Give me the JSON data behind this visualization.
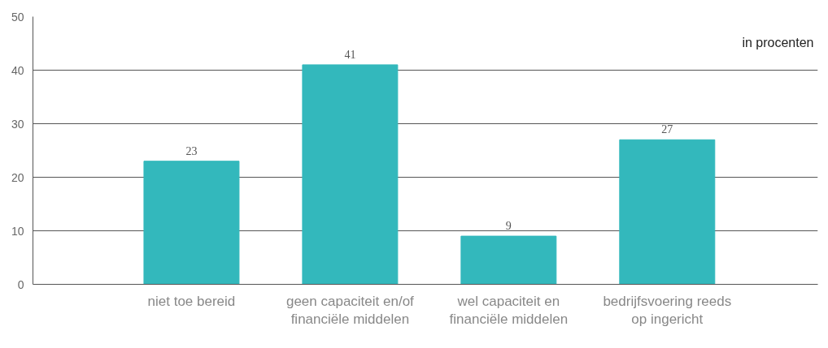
{
  "chart_data": {
    "type": "bar",
    "categories": [
      "niet toe bereid",
      "geen capaciteit en/of\nfinanciële middelen",
      "wel capaciteit en\nfinanciële middelen",
      "bedrijfsvoering reeds\nop ingericht"
    ],
    "values": [
      23,
      41,
      9,
      27
    ],
    "color": "#33b8bc",
    "ylim": [
      0,
      50
    ],
    "yticks": [
      0,
      10,
      20,
      30,
      40,
      50
    ],
    "grid": "y",
    "data_labels": true,
    "annotations": [
      "in procenten"
    ]
  }
}
